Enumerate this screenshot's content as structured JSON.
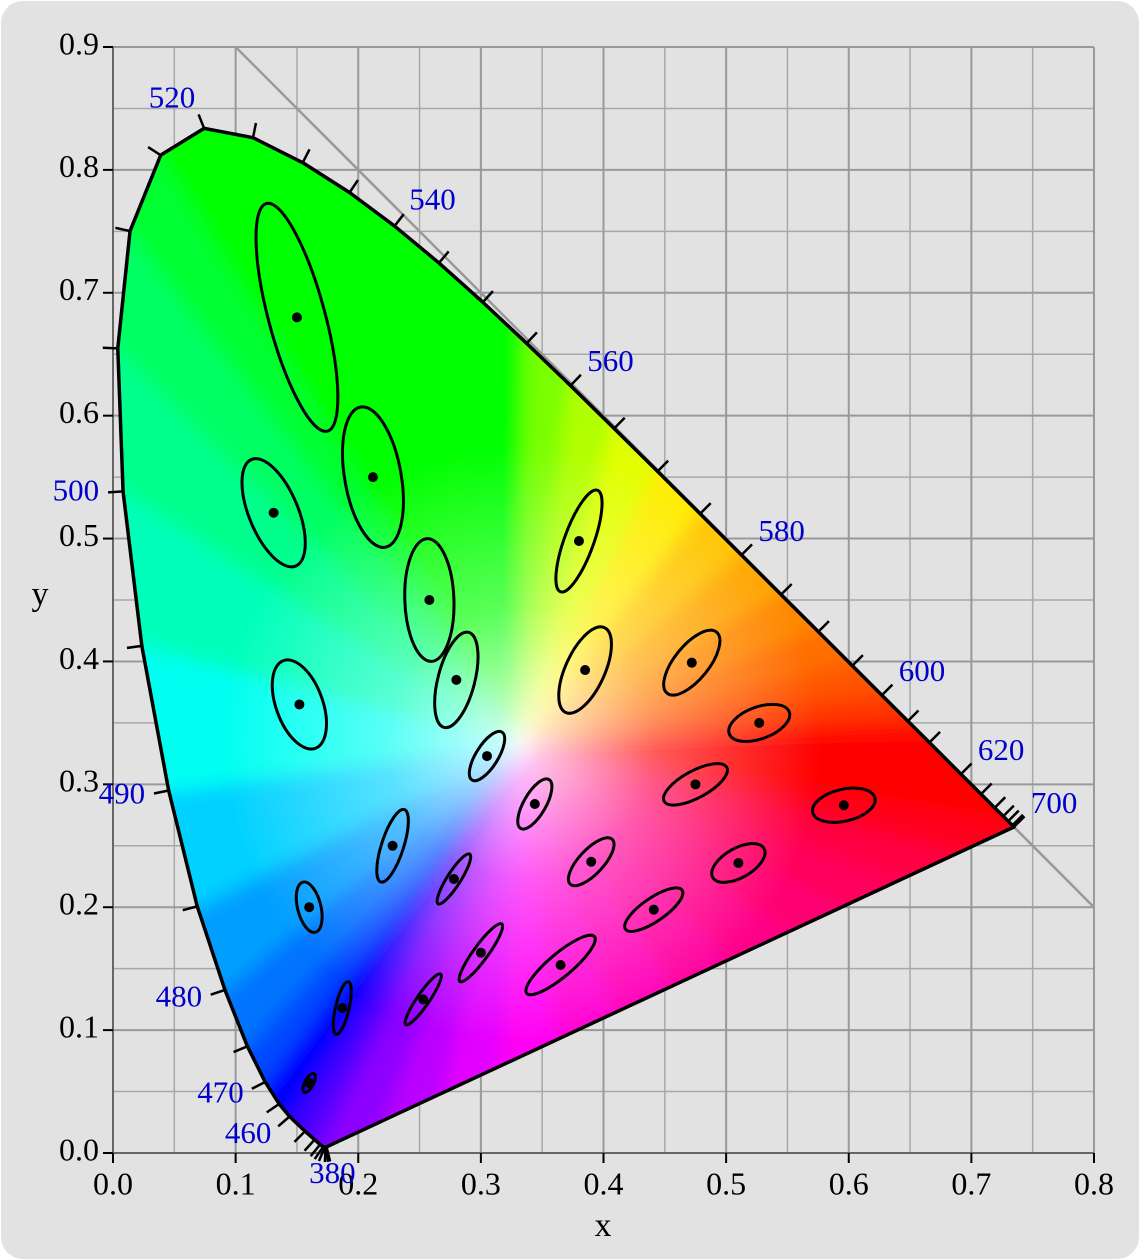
{
  "chart_data": {
    "type": "scatter",
    "x_label": "x",
    "y_label": "y",
    "xlim": [
      0,
      0.8
    ],
    "ylim": [
      0,
      0.9
    ],
    "xticks": [
      {
        "value": 0,
        "label": "0.0"
      },
      0.1,
      0.2,
      0.3,
      0.4,
      0.5,
      0.6,
      0.7,
      0.8
    ],
    "yticks": [
      {
        "value": 0,
        "label": "0.0"
      },
      0.1,
      0.2,
      0.3,
      0.4,
      0.5,
      0.6,
      0.7,
      0.8,
      0.9
    ],
    "xminorticks": [
      0.05,
      0.15,
      0.25,
      0.35,
      0.45,
      0.55,
      0.65,
      0.75
    ],
    "yminorticks": [
      0.05,
      0.15,
      0.25,
      0.35,
      0.45,
      0.55,
      0.65,
      0.75,
      0.85
    ],
    "grid": true,
    "label_color": "#0000cc",
    "line_color": "#000000",
    "locus": {
      "wavelengths": [
        380,
        null,
        null,
        null,
        null,
        null,
        null,
        null,
        460,
        null,
        470,
        null,
        480,
        null,
        490,
        null,
        500,
        null,
        null,
        null,
        520,
        null,
        null,
        null,
        540,
        null,
        null,
        null,
        560,
        null,
        null,
        null,
        580,
        null,
        null,
        null,
        600,
        null,
        null,
        620,
        null,
        null,
        null,
        null,
        null,
        700
      ],
      "x": [
        0.1741,
        0.1738,
        0.1733,
        0.1726,
        0.1714,
        0.1689,
        0.1644,
        0.1566,
        0.144,
        0.1355,
        0.1241,
        0.1096,
        0.0913,
        0.0687,
        0.0454,
        0.0235,
        0.0082,
        0.0039,
        0.0139,
        0.0389,
        0.0743,
        0.1142,
        0.1547,
        0.1929,
        0.2296,
        0.2658,
        0.3016,
        0.3373,
        0.3731,
        0.4087,
        0.4441,
        0.4788,
        0.5125,
        0.5448,
        0.5752,
        0.6029,
        0.627,
        0.6482,
        0.6658,
        0.6915,
        0.7079,
        0.719,
        0.726,
        0.73,
        0.7334,
        0.7347
      ],
      "y": [
        0.005,
        0.0049,
        0.0048,
        0.0048,
        0.0051,
        0.0069,
        0.0109,
        0.0177,
        0.0297,
        0.0399,
        0.0578,
        0.0868,
        0.1327,
        0.2007,
        0.295,
        0.4127,
        0.5384,
        0.6548,
        0.7502,
        0.812,
        0.8338,
        0.8262,
        0.8059,
        0.7816,
        0.7543,
        0.7243,
        0.6923,
        0.6589,
        0.6245,
        0.5896,
        0.5547,
        0.5202,
        0.4866,
        0.4544,
        0.4242,
        0.3965,
        0.3725,
        0.3514,
        0.334,
        0.3083,
        0.292,
        0.2809,
        0.274,
        0.27,
        0.2666,
        0.2653
      ]
    },
    "ellipses": {
      "x": [
        0.16,
        0.187,
        0.253,
        0.15,
        0.131,
        0.212,
        0.258,
        0.152,
        0.28,
        0.38,
        0.16,
        0.228,
        0.305,
        0.385,
        0.472,
        0.527,
        0.475,
        0.51,
        0.596,
        0.344,
        0.39,
        0.441,
        0.278,
        0.3,
        0.365
      ],
      "y": [
        0.057,
        0.118,
        0.125,
        0.68,
        0.521,
        0.55,
        0.45,
        0.365,
        0.385,
        0.498,
        0.2,
        0.25,
        0.323,
        0.393,
        0.399,
        0.35,
        0.3,
        0.236,
        0.283,
        0.284,
        0.237,
        0.198,
        0.223,
        0.163,
        0.153
      ],
      "a": [
        0.0085,
        0.022,
        0.025,
        0.096,
        0.047,
        0.058,
        0.05,
        0.038,
        0.04,
        0.044,
        0.021,
        0.031,
        0.023,
        0.038,
        0.032,
        0.026,
        0.029,
        0.024,
        0.026,
        0.023,
        0.025,
        0.028,
        0.024,
        0.029,
        0.036
      ],
      "b": [
        0.0035,
        0.0055,
        0.005,
        0.023,
        0.02,
        0.023,
        0.02,
        0.019,
        0.015,
        0.012,
        0.0095,
        0.009,
        0.009,
        0.016,
        0.014,
        0.013,
        0.011,
        0.012,
        0.013,
        0.009,
        0.01,
        0.0095,
        0.0055,
        0.006,
        0.0095
      ],
      "angle": [
        62.5,
        77,
        55.5,
        105,
        112.5,
        100,
        92,
        110,
        75.5,
        70,
        104,
        72,
        58,
        65.5,
        51,
        20,
        28.5,
        29.5,
        13,
        60,
        47,
        34.5,
        57.5,
        54,
        40
      ]
    }
  }
}
